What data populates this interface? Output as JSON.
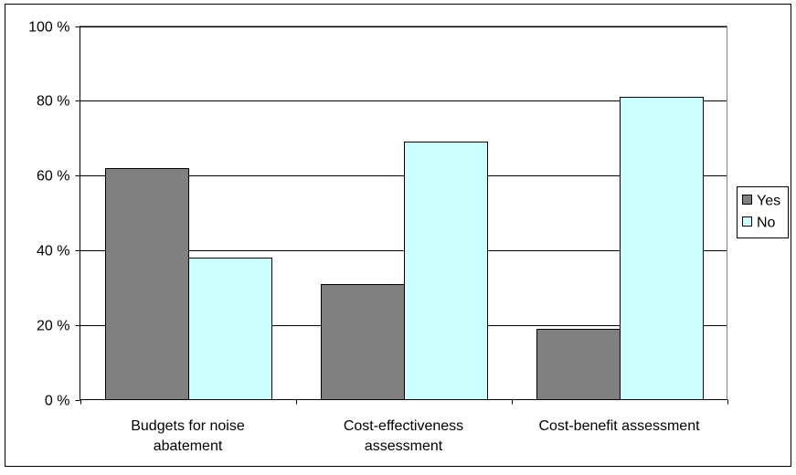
{
  "chart_data": {
    "type": "bar",
    "title": "",
    "xlabel": "",
    "ylabel": "",
    "categories": [
      [
        "Budgets for noise",
        "abatement"
      ],
      [
        "Cost-effectiveness",
        "assessment"
      ],
      [
        "Cost-benefit assessment"
      ]
    ],
    "series": [
      {
        "name": "Yes",
        "values": [
          62,
          31,
          19
        ],
        "color": "#808080"
      },
      {
        "name": "No",
        "values": [
          38,
          69,
          81
        ],
        "color": "#ccffff"
      }
    ],
    "ylim": [
      0,
      100
    ],
    "yticks": [
      0,
      20,
      40,
      60,
      80,
      100
    ],
    "ytick_labels": [
      "0 %",
      "20 %",
      "40 %",
      "60 %",
      "80 %",
      "100 %"
    ],
    "grid": true,
    "legend": "right"
  }
}
